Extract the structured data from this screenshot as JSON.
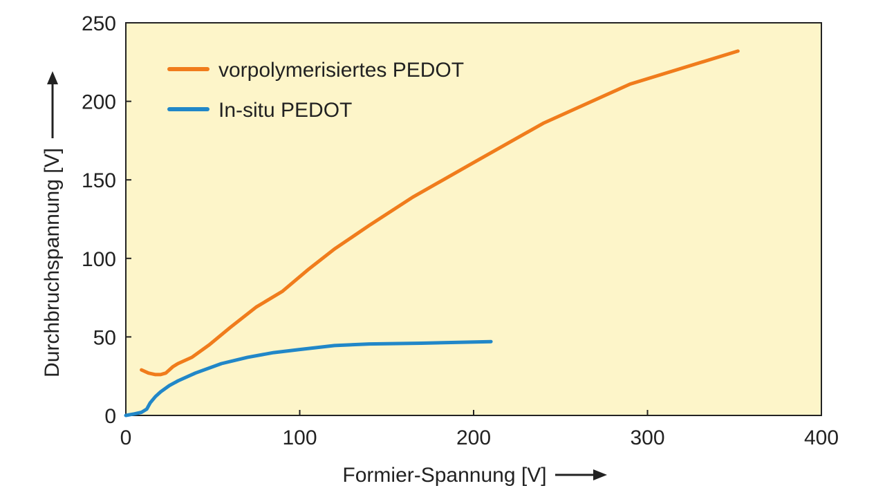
{
  "chart_data": {
    "type": "line",
    "xlabel": "Formier-Spannung [V]",
    "ylabel": "Durchbruchspannung [V]",
    "xlim": [
      0,
      400
    ],
    "ylim": [
      0,
      250
    ],
    "xticks": [
      "0",
      "100",
      "200",
      "300",
      "400"
    ],
    "yticks": [
      "0",
      "50",
      "100",
      "150",
      "200",
      "250"
    ],
    "plot_background": "#fdf5c9",
    "grid": false,
    "legend_position": "top-left",
    "series": [
      {
        "name": "vorpolymerisiertes PEDOT",
        "color": "#f07c1c",
        "x": [
          9,
          13,
          17,
          20,
          23,
          27,
          30,
          38,
          48,
          60,
          75,
          90,
          105,
          120,
          140,
          165,
          200,
          240,
          290,
          352
        ],
        "y": [
          29,
          27,
          26,
          26,
          27,
          31,
          33,
          37,
          45,
          56,
          69,
          79,
          93,
          106,
          121,
          139,
          161,
          186,
          211,
          232
        ]
      },
      {
        "name": "In-situ PEDOT",
        "color": "#2187c8",
        "x": [
          0,
          5,
          9,
          12,
          14,
          17,
          20,
          25,
          30,
          40,
          55,
          70,
          85,
          100,
          120,
          140,
          170,
          210
        ],
        "y": [
          0,
          1,
          2,
          4,
          8,
          12,
          15,
          19,
          22,
          27,
          33,
          37,
          40,
          42,
          44.5,
          45.5,
          46,
          47
        ]
      }
    ]
  }
}
